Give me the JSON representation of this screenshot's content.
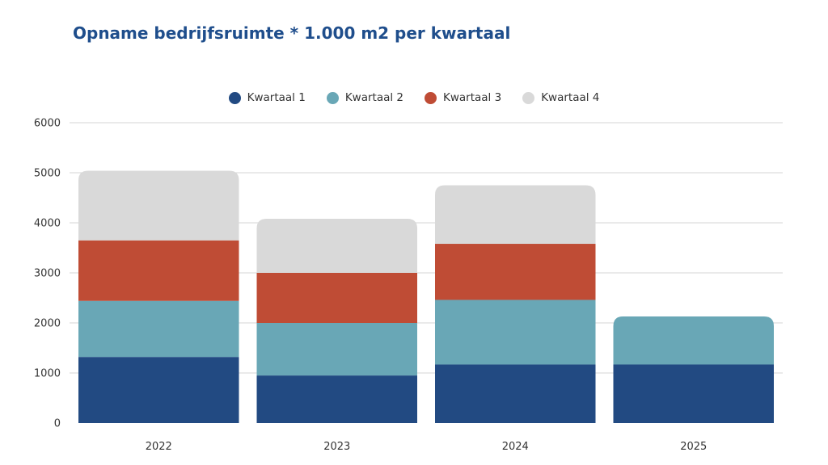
{
  "chart_data": {
    "type": "bar",
    "stacked": true,
    "title": "Opname bedrijfsruimte * 1.000 m2 per kwartaal",
    "xlabel": "",
    "ylabel": "",
    "categories": [
      "2022",
      "2023",
      "2024",
      "2025"
    ],
    "series": [
      {
        "name": "Kwartaal 1",
        "color": "#224a82",
        "values": [
          1320,
          950,
          1170,
          1170
        ]
      },
      {
        "name": "Kwartaal 2",
        "color": "#69a7b6",
        "values": [
          1120,
          1050,
          1290,
          960
        ]
      },
      {
        "name": "Kwartaal 3",
        "color": "#bf4c35",
        "values": [
          1210,
          1000,
          1120,
          null
        ]
      },
      {
        "name": "Kwartaal 4",
        "color": "#d9d9d9",
        "values": [
          1390,
          1080,
          1170,
          null
        ]
      }
    ],
    "ylim": [
      0,
      6000
    ],
    "yticks": [
      0,
      1000,
      2000,
      3000,
      4000,
      5000,
      6000
    ],
    "grid": true,
    "legend_position": "top-center"
  }
}
